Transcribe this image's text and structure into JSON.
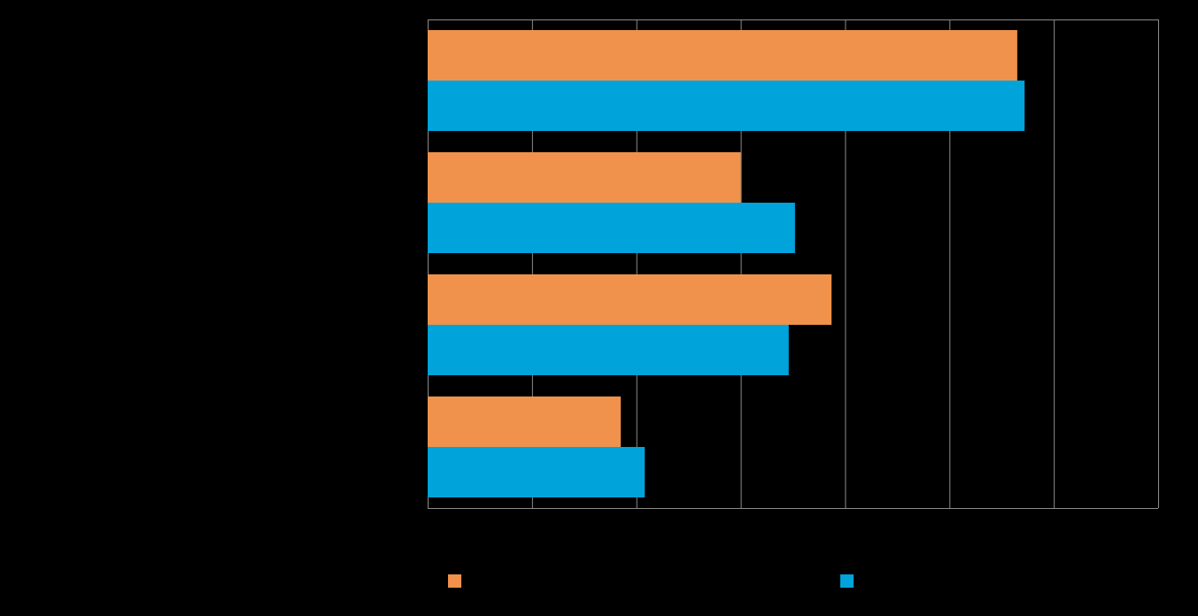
{
  "chart_data": {
    "type": "bar",
    "orientation": "horizontal",
    "title": "",
    "xlabel": "",
    "ylabel": "",
    "categories": [
      "",
      "",
      "",
      ""
    ],
    "series": [
      {
        "color": "#F0924C",
        "values": [
          56.5,
          30,
          38.7,
          18.5
        ]
      },
      {
        "color": "#00A3DA",
        "values": [
          57.2,
          35.2,
          34.6,
          20.8
        ]
      }
    ],
    "xlim": [
      0,
      70
    ],
    "x_gridlines": [
      0,
      10,
      20,
      30,
      40,
      50,
      60,
      70
    ],
    "grid": true,
    "legend_position": "bottom",
    "background": "#000000",
    "gridline_color": "#8C8C8C"
  }
}
